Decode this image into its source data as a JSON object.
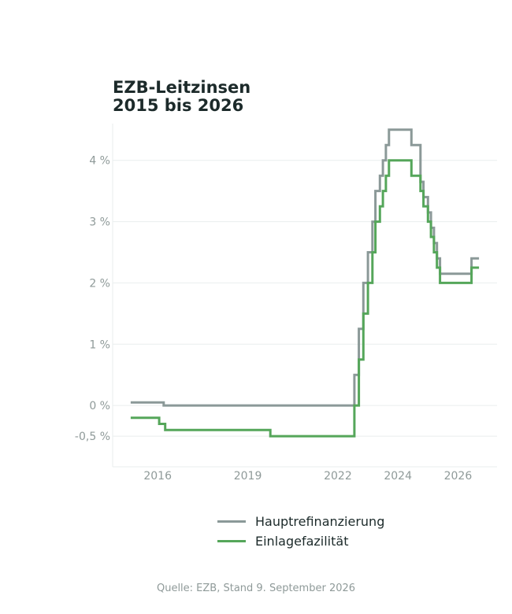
{
  "colors": {
    "grid": "#e9eeee",
    "axis": "#e9eeee",
    "ticktext": "#8f9a99"
  },
  "chart_data": {
    "type": "line",
    "title_lines": [
      "EZB-Leitzinsen",
      "2015 bis 2026"
    ],
    "xlim": [
      2014.5,
      2027.3
    ],
    "ylim": [
      -1.0,
      4.6
    ],
    "x_ticks": [
      2016,
      2019,
      2022,
      2024,
      2026
    ],
    "x_tick_labels": [
      "2016",
      "2019",
      "2022",
      "2024",
      "2026"
    ],
    "y_ticks": [
      -0.5,
      0,
      1,
      2,
      3,
      4
    ],
    "y_tick_labels": [
      "-0,5 %",
      "0 %",
      "1 %",
      "2 %",
      "3 %",
      "4 %"
    ],
    "grid": true,
    "legend_position": "bottom",
    "series": [
      {
        "name": "Hauptrefinanzierung",
        "color": "#8b9998",
        "step": true,
        "points": [
          [
            2015.1,
            0.05
          ],
          [
            2016.2,
            0.0
          ],
          [
            2022.55,
            0.5
          ],
          [
            2022.7,
            1.25
          ],
          [
            2022.85,
            2.0
          ],
          [
            2023.0,
            2.5
          ],
          [
            2023.15,
            3.0
          ],
          [
            2023.25,
            3.5
          ],
          [
            2023.4,
            3.75
          ],
          [
            2023.5,
            4.0
          ],
          [
            2023.6,
            4.25
          ],
          [
            2023.7,
            4.5
          ],
          [
            2024.45,
            4.25
          ],
          [
            2024.75,
            3.65
          ],
          [
            2024.85,
            3.4
          ],
          [
            2025.0,
            3.15
          ],
          [
            2025.1,
            2.9
          ],
          [
            2025.2,
            2.65
          ],
          [
            2025.3,
            2.4
          ],
          [
            2025.4,
            2.15
          ],
          [
            2026.45,
            2.4
          ],
          [
            2026.7,
            2.4
          ]
        ]
      },
      {
        "name": "Einlagefazilität",
        "color": "#55a65a",
        "step": true,
        "points": [
          [
            2015.1,
            -0.2
          ],
          [
            2016.05,
            -0.3
          ],
          [
            2016.25,
            -0.4
          ],
          [
            2019.75,
            -0.5
          ],
          [
            2022.55,
            0.0
          ],
          [
            2022.7,
            0.75
          ],
          [
            2022.85,
            1.5
          ],
          [
            2023.0,
            2.0
          ],
          [
            2023.15,
            2.5
          ],
          [
            2023.25,
            3.0
          ],
          [
            2023.4,
            3.25
          ],
          [
            2023.5,
            3.5
          ],
          [
            2023.6,
            3.75
          ],
          [
            2023.7,
            4.0
          ],
          [
            2024.45,
            3.75
          ],
          [
            2024.75,
            3.5
          ],
          [
            2024.85,
            3.25
          ],
          [
            2025.0,
            3.0
          ],
          [
            2025.1,
            2.75
          ],
          [
            2025.2,
            2.5
          ],
          [
            2025.3,
            2.25
          ],
          [
            2025.4,
            2.0
          ],
          [
            2026.45,
            2.25
          ],
          [
            2026.7,
            2.25
          ]
        ]
      }
    ]
  },
  "source": "Quelle: EZB, Stand 9. September 2026"
}
